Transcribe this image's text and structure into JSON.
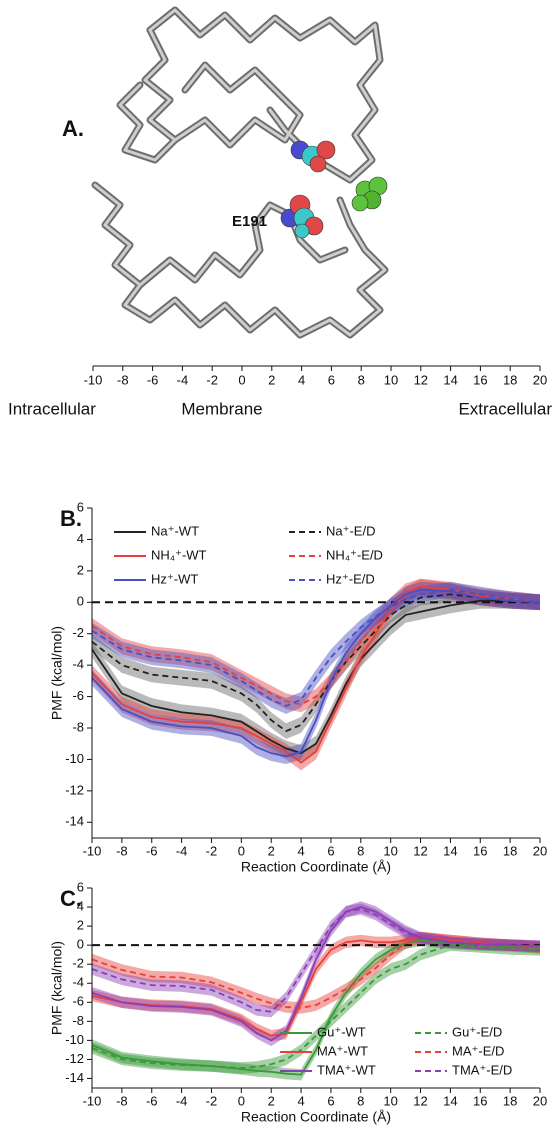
{
  "panel_a": {
    "label": "A.",
    "residue_label": "E191",
    "xlim": [
      -10,
      20
    ],
    "xticks": [
      -10,
      -8,
      -6,
      -4,
      -2,
      0,
      2,
      4,
      6,
      8,
      10,
      12,
      14,
      16,
      18,
      20
    ],
    "region_labels": [
      "Intracellular",
      "Membrane",
      "Extracellular"
    ]
  },
  "chart_data": [
    {
      "type": "line",
      "label": "B.",
      "xlabel": "Reaction Coordinate (Å)",
      "ylabel": "PMF (kcal/mol)",
      "x": [
        -10,
        -8,
        -6,
        -4,
        -2,
        0,
        1,
        2,
        3,
        4,
        5,
        6,
        7,
        8,
        9,
        10,
        11,
        12,
        14,
        16,
        18,
        20
      ],
      "xlim": [
        -10,
        20
      ],
      "xticks": [
        -10,
        -8,
        -6,
        -4,
        -2,
        0,
        2,
        4,
        6,
        8,
        10,
        12,
        14,
        16,
        18,
        20
      ],
      "ylim": [
        -15,
        6
      ],
      "yticks": [
        -14,
        -12,
        -10,
        -8,
        -6,
        -4,
        -2,
        0,
        2,
        4,
        6
      ],
      "hline": 0,
      "legend": "upper left",
      "series": [
        {
          "name": "Na⁺-WT",
          "color": "#222222",
          "band_color": "#666666",
          "linestyle": "solid",
          "error": 0.5,
          "values": [
            -3.0,
            -5.8,
            -6.6,
            -7.0,
            -7.2,
            -7.6,
            -8.2,
            -8.8,
            -9.3,
            -9.6,
            -9.0,
            -7.2,
            -5.2,
            -3.6,
            -2.6,
            -1.6,
            -0.8,
            -0.6,
            -0.2,
            0.1,
            0.1,
            0
          ]
        },
        {
          "name": "Na⁺-E/D",
          "color": "#222222",
          "band_color": "#666666",
          "linestyle": "dashed",
          "error": 0.5,
          "values": [
            -2.5,
            -4.0,
            -4.6,
            -4.8,
            -5.0,
            -5.8,
            -6.5,
            -7.5,
            -8.2,
            -7.8,
            -6.5,
            -5.0,
            -3.8,
            -2.8,
            -1.8,
            -0.8,
            -0.2,
            0.3,
            0.5,
            0.3,
            0.1,
            0
          ]
        },
        {
          "name": "NH₄⁺-WT",
          "color": "#e8403a",
          "band_color": "#e8403a",
          "linestyle": "solid",
          "error": 0.5,
          "values": [
            -4.5,
            -6.5,
            -7.3,
            -7.6,
            -7.7,
            -8.0,
            -8.5,
            -9.0,
            -9.5,
            -10.2,
            -9.5,
            -7.5,
            -5.5,
            -3.5,
            -2.0,
            -0.5,
            0.5,
            1.0,
            0.8,
            0.4,
            0.2,
            0
          ]
        },
        {
          "name": "NH₄⁺-E/D",
          "color": "#e8403a",
          "band_color": "#e8403a",
          "linestyle": "dashed",
          "error": 0.5,
          "values": [
            -1.5,
            -2.8,
            -3.3,
            -3.5,
            -3.8,
            -4.8,
            -5.3,
            -5.8,
            -6.3,
            -6.5,
            -6.0,
            -5.0,
            -3.8,
            -2.5,
            -1.3,
            -0.2,
            0.7,
            1.0,
            0.7,
            0.3,
            0.1,
            0
          ]
        },
        {
          "name": "Hz⁺-WT",
          "color": "#4b4fc4",
          "band_color": "#4b4fc4",
          "linestyle": "solid",
          "error": 0.5,
          "values": [
            -4.8,
            -6.8,
            -7.6,
            -7.9,
            -8.0,
            -8.5,
            -9.2,
            -9.6,
            -9.8,
            -9.5,
            -7.5,
            -5.0,
            -3.2,
            -2.0,
            -1.0,
            -0.2,
            0.5,
            0.8,
            0.7,
            0.3,
            0.1,
            0
          ]
        },
        {
          "name": "Hz⁺-E/D",
          "color": "#4b4fc4",
          "band_color": "#4b4fc4",
          "linestyle": "dashed",
          "error": 0.5,
          "values": [
            -1.8,
            -3.0,
            -3.5,
            -3.7,
            -4.0,
            -5.0,
            -5.6,
            -6.2,
            -6.6,
            -6.2,
            -4.8,
            -3.5,
            -2.5,
            -1.6,
            -0.9,
            -0.3,
            0.2,
            0.5,
            0.8,
            0.5,
            0.2,
            0
          ]
        }
      ]
    },
    {
      "type": "line",
      "label": "C.",
      "xlabel": "Reaction Coordinate (Å)",
      "ylabel": "PMF (kcal/mol)",
      "x": [
        -10,
        -8,
        -6,
        -4,
        -2,
        0,
        1,
        2,
        3,
        4,
        5,
        6,
        7,
        8,
        9,
        10,
        11,
        12,
        14,
        16,
        18,
        20
      ],
      "xlim": [
        -10,
        20
      ],
      "xticks": [
        -10,
        -8,
        -6,
        -4,
        -2,
        0,
        2,
        4,
        6,
        8,
        10,
        12,
        14,
        16,
        18,
        20
      ],
      "ylim": [
        -15,
        6
      ],
      "yticks": [
        -14,
        -12,
        -10,
        -8,
        -6,
        -4,
        -2,
        0,
        2,
        4,
        6
      ],
      "hline": 0,
      "legend": "lower right",
      "series": [
        {
          "name": "Gu⁺-WT",
          "color": "#3a9a3a",
          "band_color": "#3a9a3a",
          "linestyle": "solid",
          "error": 0.6,
          "values": [
            -10.5,
            -11.8,
            -12.2,
            -12.5,
            -12.7,
            -13.0,
            -13.2,
            -13.3,
            -13.5,
            -13.6,
            -11.0,
            -7.5,
            -5.0,
            -3.0,
            -1.5,
            -0.5,
            0.2,
            0.5,
            0.2,
            0,
            -0.1,
            -0.3
          ]
        },
        {
          "name": "Gu⁺-E/D",
          "color": "#3a9a3a",
          "band_color": "#3a9a3a",
          "linestyle": "dashed",
          "error": 0.6,
          "values": [
            -10.8,
            -12.0,
            -12.4,
            -12.6,
            -12.7,
            -12.9,
            -12.8,
            -12.5,
            -12.0,
            -11.0,
            -9.5,
            -8.0,
            -6.5,
            -5.0,
            -3.5,
            -2.5,
            -2.0,
            -1.0,
            0,
            -0.2,
            -0.4,
            -0.5
          ]
        },
        {
          "name": "MA⁺-WT",
          "color": "#e8403a",
          "band_color": "#e8403a",
          "linestyle": "solid",
          "error": 0.6,
          "values": [
            -5.3,
            -6.0,
            -6.3,
            -6.4,
            -6.7,
            -7.8,
            -8.8,
            -9.5,
            -9.3,
            -6.0,
            -2.5,
            -0.5,
            0.3,
            0.5,
            0.3,
            0.3,
            0.5,
            0.8,
            0.5,
            0.2,
            0,
            -0.2
          ]
        },
        {
          "name": "MA⁺-E/D",
          "color": "#e8403a",
          "band_color": "#e8403a",
          "linestyle": "dashed",
          "error": 0.6,
          "values": [
            -1.5,
            -2.6,
            -3.3,
            -3.4,
            -3.9,
            -5.0,
            -5.6,
            -6.1,
            -6.5,
            -6.6,
            -6.3,
            -5.5,
            -4.6,
            -3.6,
            -2.4,
            -1.0,
            0.2,
            0.8,
            0.5,
            0.2,
            0,
            -0.2
          ]
        },
        {
          "name": "TMA⁺-WT",
          "color": "#8b3fb5",
          "band_color": "#8b3fb5",
          "linestyle": "solid",
          "error": 0.6,
          "values": [
            -5.0,
            -6.0,
            -6.4,
            -6.5,
            -6.8,
            -8.0,
            -9.2,
            -10.0,
            -9.0,
            -5.5,
            -1.5,
            1.5,
            3.5,
            4.0,
            3.5,
            2.5,
            1.5,
            0.8,
            0.3,
            0.1,
            0,
            -0.1
          ]
        },
        {
          "name": "TMA⁺-E/D",
          "color": "#8b3fb5",
          "band_color": "#8b3fb5",
          "linestyle": "dashed",
          "error": 0.6,
          "values": [
            -2.5,
            -3.6,
            -4.2,
            -4.3,
            -4.7,
            -6.0,
            -6.8,
            -7.0,
            -5.5,
            -3.0,
            -0.5,
            2.0,
            3.5,
            3.8,
            3.2,
            2.2,
            1.3,
            0.7,
            0.3,
            0.1,
            0,
            -0.1
          ]
        }
      ]
    }
  ]
}
